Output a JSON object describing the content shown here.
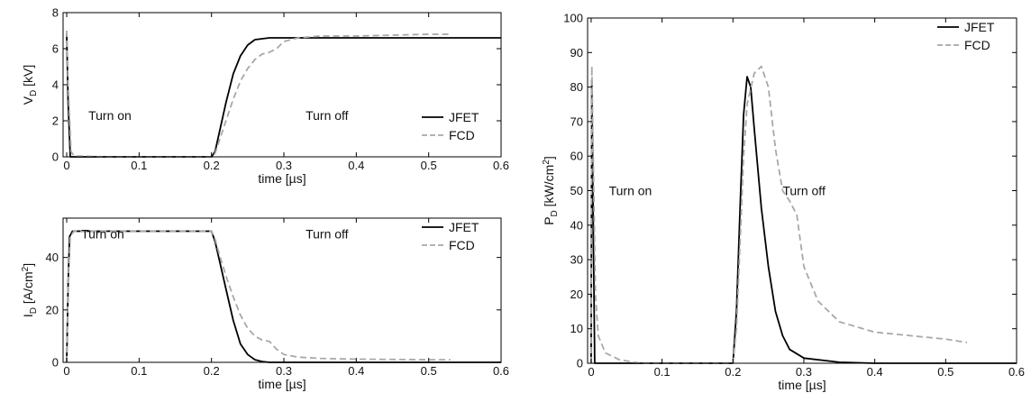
{
  "chart_data": [
    {
      "type": "line",
      "id": "vd",
      "xlabel": "time [µs]",
      "ylabel": "V",
      "ylabel_sub": "D",
      "ylabel_unit": " [kV]",
      "xlim": [
        -0.005,
        0.6
      ],
      "ylim": [
        0,
        8
      ],
      "xticks": [
        0,
        0.1,
        0.2,
        0.3,
        0.4,
        0.5,
        0.6
      ],
      "xtick_labels": [
        "0",
        "0.1",
        "0.2",
        "0.3",
        "0.4",
        "0.5",
        "0.6"
      ],
      "yticks": [
        0,
        2,
        4,
        6,
        8
      ],
      "ytick_labels": [
        "0",
        "2",
        "4",
        "6",
        "8"
      ],
      "grid": false,
      "legend_position": "bottom-right",
      "annotations": [
        {
          "text": "Turn on",
          "x": 0.03,
          "y": 2.3
        },
        {
          "text": "Turn off",
          "x": 0.33,
          "y": 2.3
        }
      ],
      "series": [
        {
          "name": "JFET",
          "style": "solid",
          "color": "#000000",
          "x": [
            0,
            0.002,
            0.005,
            0.2,
            0.205,
            0.21,
            0.22,
            0.23,
            0.24,
            0.25,
            0.26,
            0.27,
            0.28,
            0.3,
            0.35,
            0.4,
            0.5,
            0.6
          ],
          "y": [
            6.8,
            3.0,
            0,
            0,
            0.3,
            1.2,
            3.0,
            4.6,
            5.6,
            6.2,
            6.5,
            6.55,
            6.6,
            6.6,
            6.6,
            6.6,
            6.6,
            6.6
          ]
        },
        {
          "name": "FCD",
          "style": "dashed",
          "color": "#a8a8a8",
          "x": [
            0,
            0.002,
            0.006,
            0.01,
            0.05,
            0.2,
            0.205,
            0.21,
            0.22,
            0.23,
            0.24,
            0.25,
            0.26,
            0.27,
            0.28,
            0.29,
            0.3,
            0.32,
            0.35,
            0.4,
            0.5,
            0.53
          ],
          "y": [
            7.0,
            4.0,
            0.3,
            0.05,
            0,
            0,
            0.2,
            0.8,
            2.0,
            3.2,
            4.2,
            4.9,
            5.4,
            5.7,
            5.8,
            6.0,
            6.4,
            6.6,
            6.7,
            6.7,
            6.8,
            6.8
          ]
        }
      ]
    },
    {
      "type": "line",
      "id": "id",
      "xlabel": "time [µs]",
      "ylabel": "I",
      "ylabel_sub": "D",
      "ylabel_unit": " [A/cm",
      "ylabel_sup": "2",
      "ylabel_end": "]",
      "xlim": [
        -0.005,
        0.6
      ],
      "ylim": [
        0,
        55
      ],
      "xticks": [
        0,
        0.1,
        0.2,
        0.3,
        0.4,
        0.5,
        0.6
      ],
      "xtick_labels": [
        "0",
        "0.1",
        "0.2",
        "0.3",
        "0.4",
        "0.5",
        "0.6"
      ],
      "yticks": [
        0,
        20,
        40
      ],
      "ytick_labels": [
        "0",
        "20",
        "40"
      ],
      "grid": false,
      "legend_position": "top-right",
      "annotations": [
        {
          "text": "Turn on",
          "x": 0.02,
          "y": 49
        },
        {
          "text": "Turn off",
          "x": 0.33,
          "y": 49
        }
      ],
      "series": [
        {
          "name": "JFET",
          "style": "solid",
          "color": "#000000",
          "x": [
            0,
            0.002,
            0.004,
            0.008,
            0.2,
            0.205,
            0.21,
            0.22,
            0.23,
            0.24,
            0.25,
            0.26,
            0.27,
            0.28,
            0.3,
            0.35,
            0.4,
            0.6
          ],
          "y": [
            0,
            30,
            48,
            50,
            50,
            46,
            40,
            28,
            16,
            7,
            3,
            1,
            0.3,
            0,
            0,
            0,
            0,
            0
          ]
        },
        {
          "name": "FCD",
          "style": "dashed",
          "color": "#a8a8a8",
          "x": [
            0,
            0.002,
            0.005,
            0.01,
            0.2,
            0.205,
            0.21,
            0.22,
            0.23,
            0.24,
            0.25,
            0.26,
            0.27,
            0.28,
            0.29,
            0.3,
            0.32,
            0.35,
            0.4,
            0.5,
            0.53
          ],
          "y": [
            0,
            30,
            48,
            50,
            50,
            47,
            42,
            33,
            25,
            18,
            13,
            10,
            8.5,
            8,
            5,
            3,
            2,
            1.5,
            1.2,
            1.0,
            1.0
          ]
        }
      ]
    },
    {
      "type": "line",
      "id": "pd",
      "xlabel": "time [µs]",
      "ylabel": "P",
      "ylabel_sub": "D",
      "ylabel_unit": " [kW/cm",
      "ylabel_sup": "2",
      "ylabel_end": "]",
      "xlim": [
        -0.005,
        0.6
      ],
      "ylim": [
        0,
        100
      ],
      "xticks": [
        0,
        0.1,
        0.2,
        0.3,
        0.4,
        0.5,
        0.6
      ],
      "xtick_labels": [
        "0",
        "0.1",
        "0.2",
        "0.3",
        "0.4",
        "0.5",
        "0.6"
      ],
      "yticks": [
        0,
        10,
        20,
        30,
        40,
        50,
        60,
        70,
        80,
        90,
        100
      ],
      "ytick_labels": [
        "0",
        "10",
        "20",
        "30",
        "40",
        "50",
        "60",
        "70",
        "80",
        "90",
        "100"
      ],
      "grid": false,
      "legend_position": "top-right",
      "annotations": [
        {
          "text": "Turn on",
          "x": 0.025,
          "y": 50
        },
        {
          "text": "Turn off",
          "x": 0.27,
          "y": 50
        }
      ],
      "series": [
        {
          "name": "JFET",
          "style": "solid",
          "color": "#000000",
          "x": [
            0,
            0.001,
            0.003,
            0.005,
            0.2,
            0.205,
            0.21,
            0.215,
            0.22,
            0.225,
            0.23,
            0.24,
            0.25,
            0.26,
            0.27,
            0.28,
            0.3,
            0.35,
            0.4,
            0.6
          ],
          "y": [
            0,
            82,
            40,
            0,
            0,
            15,
            45,
            72,
            83,
            80,
            68,
            45,
            28,
            15,
            8,
            4,
            1.5,
            0.3,
            0,
            0
          ]
        },
        {
          "name": "FCD",
          "style": "dashed",
          "color": "#a8a8a8",
          "x": [
            0,
            0.001,
            0.003,
            0.006,
            0.01,
            0.02,
            0.04,
            0.07,
            0.2,
            0.205,
            0.21,
            0.215,
            0.22,
            0.23,
            0.24,
            0.25,
            0.26,
            0.27,
            0.28,
            0.29,
            0.3,
            0.32,
            0.35,
            0.4,
            0.45,
            0.5,
            0.53
          ],
          "y": [
            0,
            86,
            60,
            20,
            8,
            3,
            1,
            0,
            0,
            10,
            35,
            60,
            75,
            84,
            86,
            80,
            62,
            50,
            47,
            43,
            28,
            18,
            12,
            9,
            8,
            7,
            6
          ]
        }
      ]
    }
  ]
}
